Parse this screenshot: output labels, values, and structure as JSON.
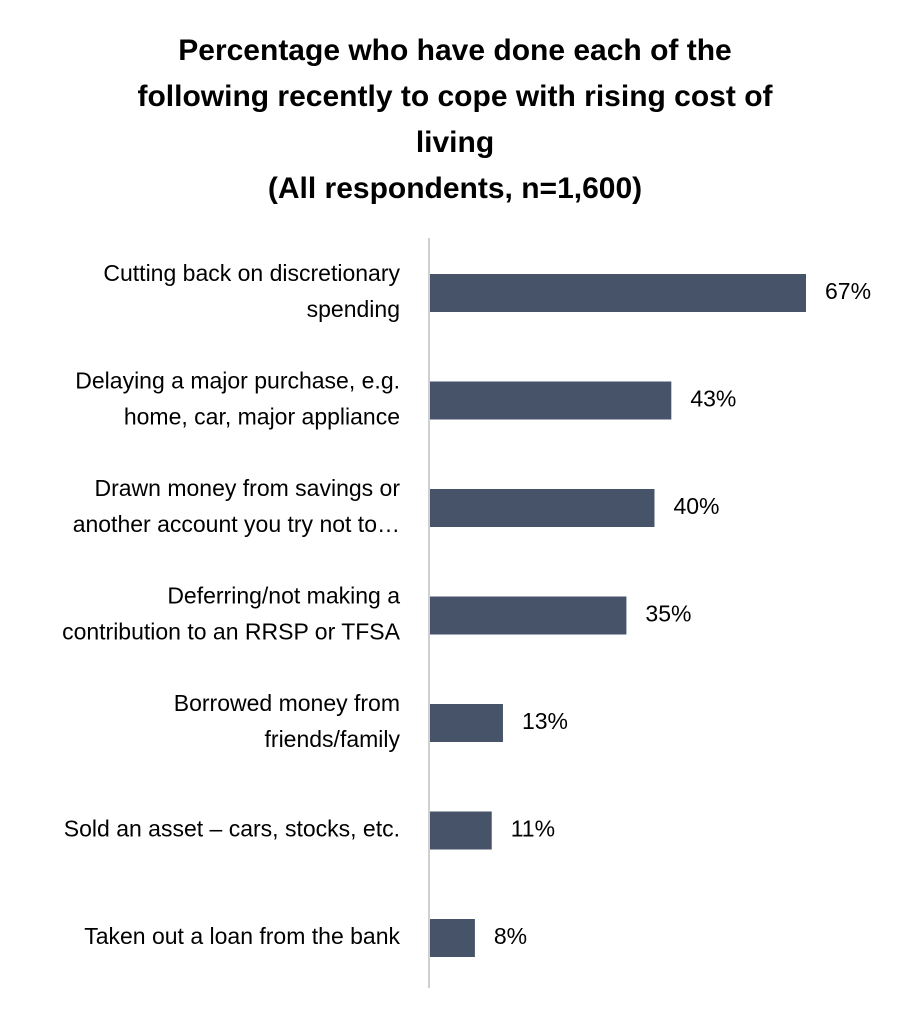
{
  "chart_data": {
    "type": "bar",
    "orientation": "horizontal",
    "title_lines": [
      "Percentage who have done each of the",
      "following recently to cope with rising cost of",
      "living",
      "(All respondents, n=1,600)"
    ],
    "categories": [
      [
        "Cutting back on discretionary",
        "spending"
      ],
      [
        "Delaying a major purchase, e.g.",
        "home, car, major appliance"
      ],
      [
        "Drawn money from savings or",
        "another account you try not to…"
      ],
      [
        "Deferring/not making a",
        "contribution to an RRSP or TFSA"
      ],
      [
        "Borrowed money from",
        "friends/family"
      ],
      [
        "Sold an asset – cars, stocks, etc."
      ],
      [
        "Taken out a loan from the bank"
      ]
    ],
    "values": [
      67,
      43,
      40,
      35,
      13,
      11,
      8
    ],
    "value_labels": [
      "67%",
      "43%",
      "40%",
      "35%",
      "13%",
      "11%",
      "8%"
    ],
    "xlim": [
      0,
      85
    ],
    "bar_color": "#465369",
    "axis_color": "#d0d0d0",
    "grid": false,
    "legend": "none"
  }
}
